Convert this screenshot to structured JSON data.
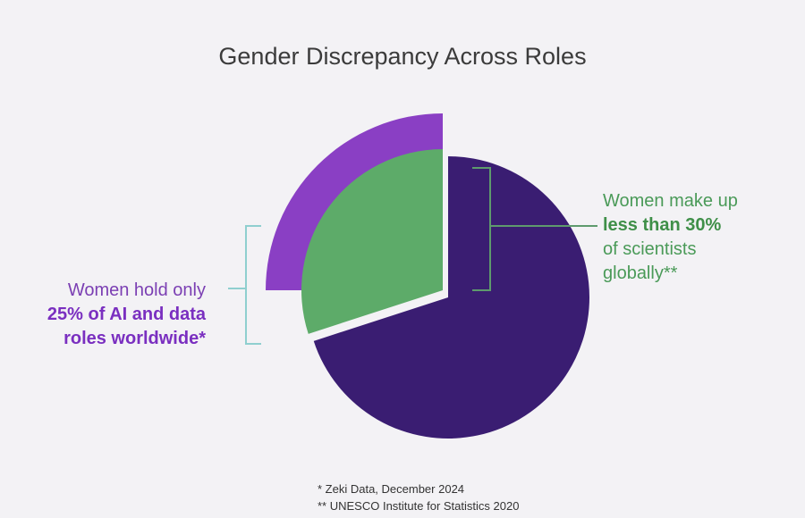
{
  "chart_data": {
    "type": "pie",
    "title": "Gender Discrepancy Across Roles",
    "slices": [
      {
        "label": "Women scientists globally",
        "value": 30,
        "color": "#5dab69"
      },
      {
        "label": "Other",
        "value": 70,
        "color": "#3a1d72"
      }
    ],
    "highlight": {
      "label": "Women in AI and data roles worldwide",
      "value": 25,
      "color": "#8a3fc4"
    },
    "annotations": {
      "left": {
        "line1": "Women hold only",
        "line2": "25% of AI and data",
        "line3": "roles worldwide*"
      },
      "right": {
        "line1": "Women make up",
        "line2": "less than 30%",
        "line3": "of scientists",
        "line4": "globally**"
      }
    },
    "footnotes": [
      "* Zeki Data, December 2024",
      "** UNESCO Institute for Statistics 2020"
    ]
  }
}
